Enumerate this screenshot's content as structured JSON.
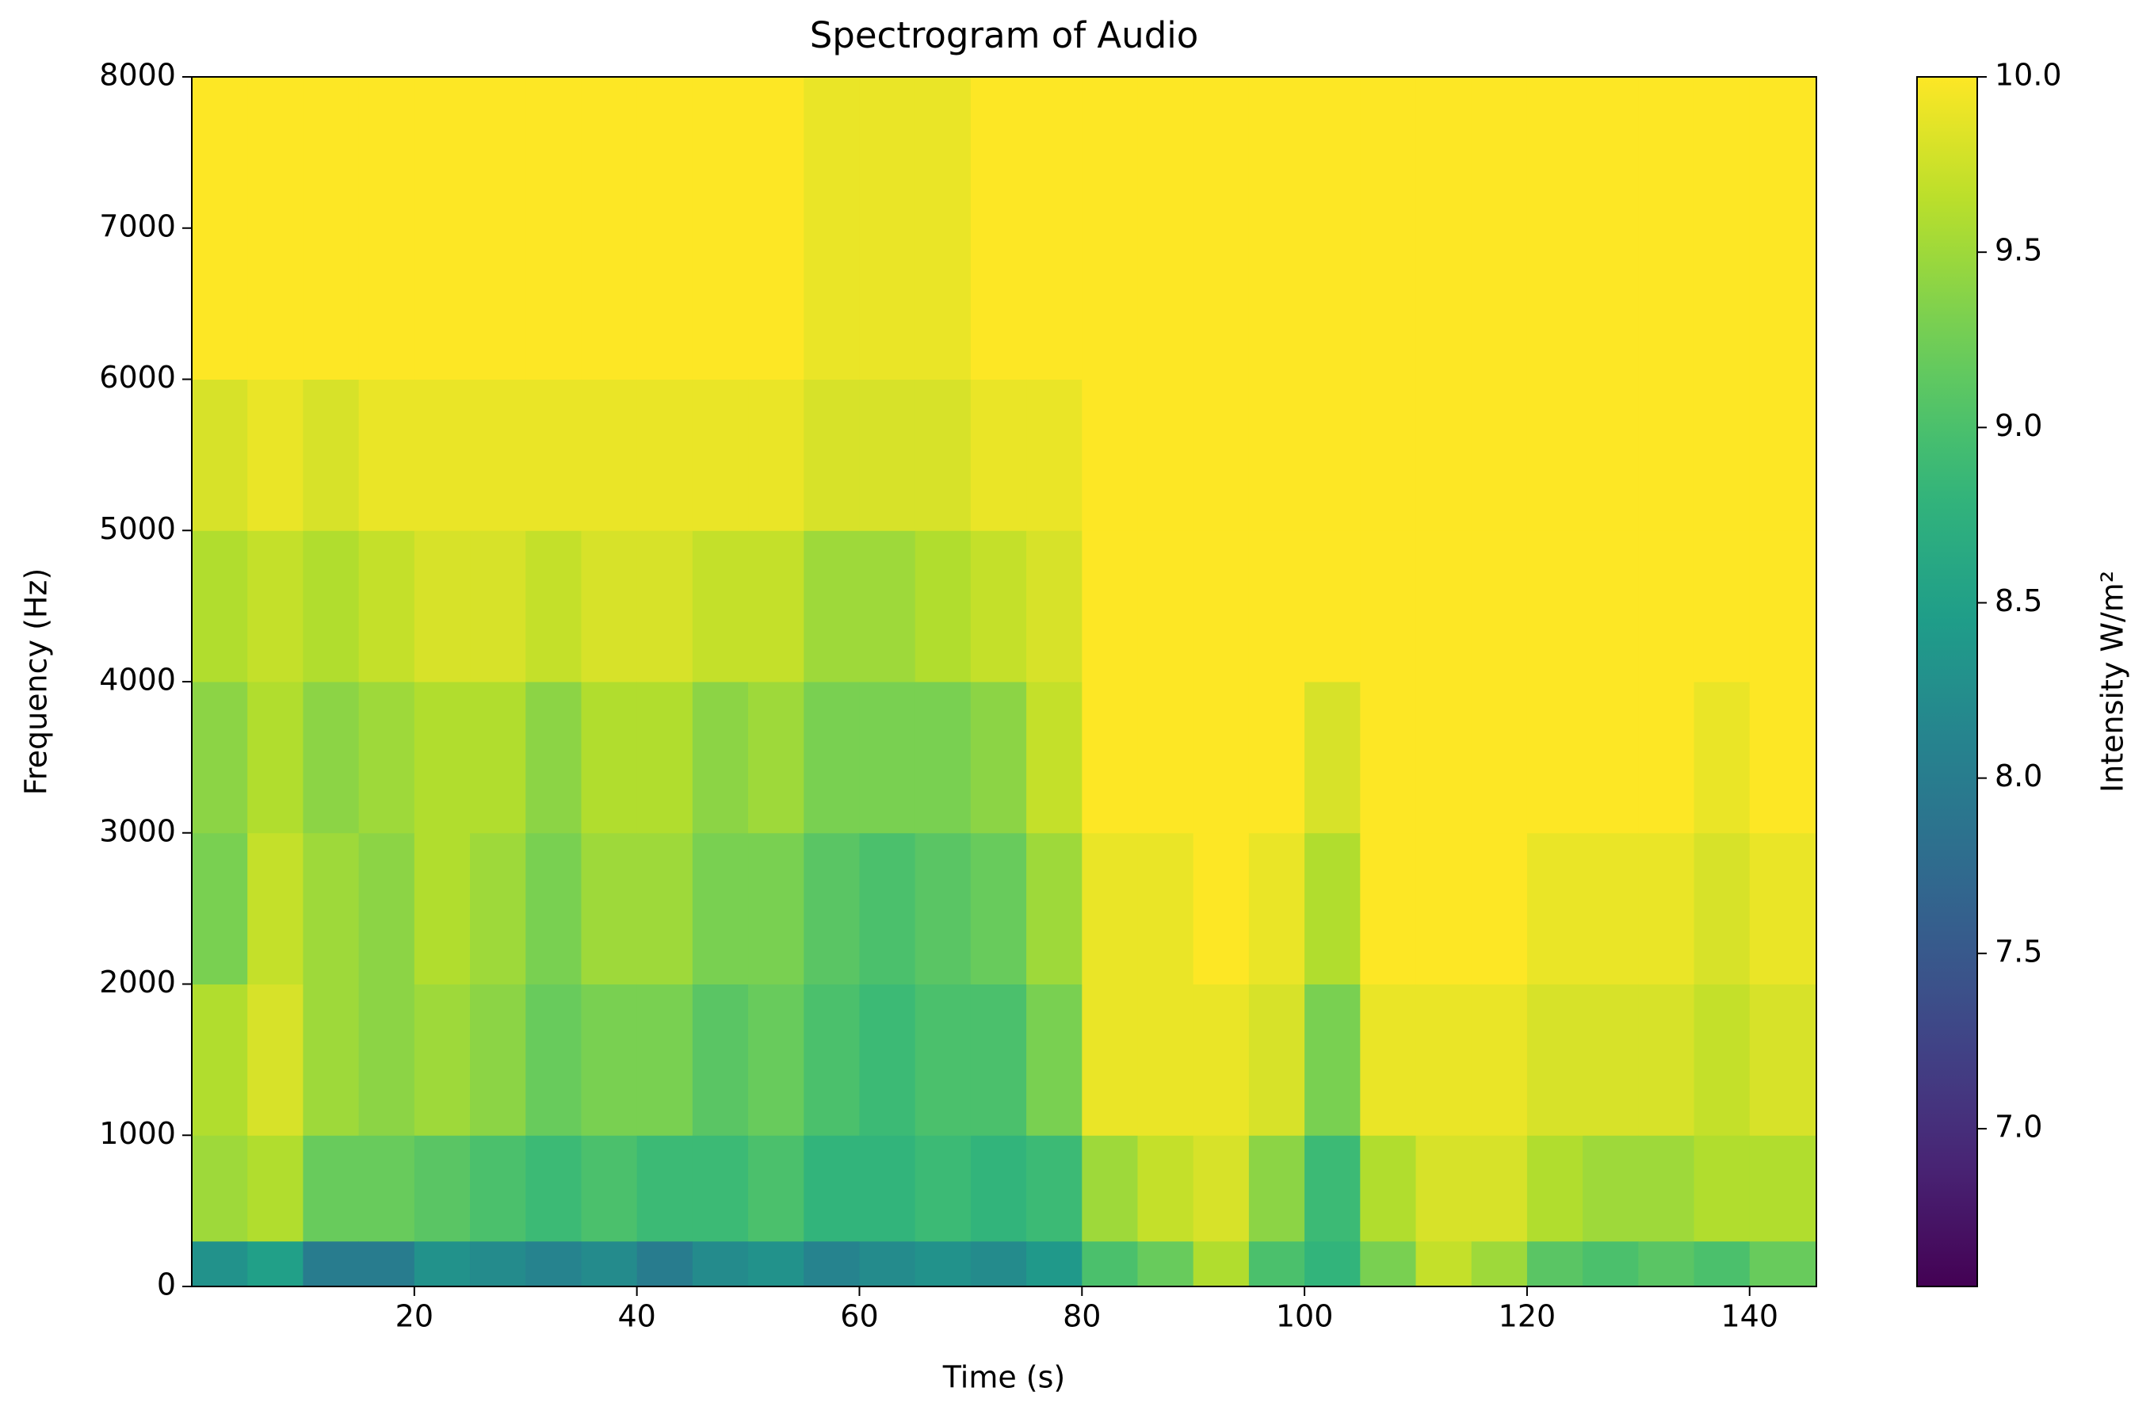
{
  "chart_data": {
    "type": "spectrogram",
    "title": "Spectrogram of Audio",
    "x_label": "Time (s)",
    "y_label": "Frequency (Hz)",
    "colorbar_label": "Intensity W/m²",
    "colormap": "viridis",
    "xlim": [
      0,
      146
    ],
    "ylim": [
      0,
      8000
    ],
    "clim": [
      6.55,
      10
    ],
    "xticks": [
      20,
      40,
      60,
      80,
      100,
      120,
      140
    ],
    "yticks": [
      0,
      1000,
      2000,
      3000,
      4000,
      5000,
      6000,
      7000,
      8000
    ],
    "cticks": [
      {
        "value": 7,
        "label": "7.0"
      },
      {
        "value": 7.5,
        "label": "7.5"
      },
      {
        "value": 8,
        "label": "8.0"
      },
      {
        "value": 8.5,
        "label": "8.5"
      },
      {
        "value": 9,
        "label": "9.0"
      },
      {
        "value": 9.5,
        "label": "9.5"
      },
      {
        "value": 10,
        "label": "10.0"
      }
    ],
    "x_bins": [
      0,
      5,
      10,
      15,
      20,
      25,
      30,
      35,
      40,
      45,
      50,
      55,
      60,
      65,
      70,
      75,
      80,
      85,
      90,
      95,
      100,
      105,
      110,
      115,
      120,
      125,
      130,
      135,
      140,
      146
    ],
    "y_bins": [
      0,
      300,
      1000,
      2000,
      3000,
      4000,
      5000,
      6000,
      8000
    ],
    "values": [
      [
        8.3,
        9.5,
        9.6,
        9.3,
        9.4,
        9.6,
        9.8,
        10
      ],
      [
        8.5,
        9.6,
        9.8,
        9.7,
        9.6,
        9.7,
        9.9,
        10
      ],
      [
        8.0,
        9.2,
        9.5,
        9.5,
        9.4,
        9.6,
        9.8,
        10
      ],
      [
        8.0,
        9.2,
        9.4,
        9.4,
        9.5,
        9.7,
        9.9,
        10
      ],
      [
        8.3,
        9.1,
        9.5,
        9.6,
        9.6,
        9.8,
        9.9,
        10
      ],
      [
        8.2,
        9.0,
        9.4,
        9.5,
        9.6,
        9.8,
        9.9,
        10
      ],
      [
        8.1,
        8.9,
        9.2,
        9.3,
        9.4,
        9.7,
        9.9,
        10
      ],
      [
        8.2,
        9.0,
        9.3,
        9.5,
        9.6,
        9.8,
        9.9,
        10
      ],
      [
        8.0,
        8.9,
        9.3,
        9.5,
        9.6,
        9.8,
        9.9,
        10
      ],
      [
        8.2,
        8.9,
        9.1,
        9.3,
        9.4,
        9.7,
        9.9,
        10
      ],
      [
        8.3,
        9.0,
        9.2,
        9.3,
        9.5,
        9.7,
        9.9,
        10
      ],
      [
        8.1,
        8.8,
        9.0,
        9.1,
        9.3,
        9.5,
        9.8,
        9.9
      ],
      [
        8.2,
        8.8,
        8.9,
        9.0,
        9.3,
        9.5,
        9.8,
        9.9
      ],
      [
        8.3,
        8.9,
        9.0,
        9.1,
        9.3,
        9.6,
        9.8,
        9.9
      ],
      [
        8.2,
        8.8,
        9.0,
        9.2,
        9.4,
        9.7,
        9.9,
        10
      ],
      [
        8.4,
        8.9,
        9.3,
        9.5,
        9.7,
        9.8,
        9.9,
        10
      ],
      [
        9.0,
        9.5,
        9.9,
        9.9,
        10,
        10,
        10,
        10
      ],
      [
        9.2,
        9.7,
        9.9,
        9.9,
        10,
        10,
        10,
        10
      ],
      [
        9.6,
        9.8,
        9.9,
        10,
        10,
        10,
        10,
        10
      ],
      [
        9.0,
        9.4,
        9.8,
        9.9,
        10,
        10,
        10,
        10
      ],
      [
        8.8,
        8.9,
        9.3,
        9.6,
        9.8,
        10,
        10,
        10
      ],
      [
        9.3,
        9.6,
        9.9,
        10,
        10,
        10,
        10,
        10
      ],
      [
        9.7,
        9.8,
        9.9,
        10,
        10,
        10,
        10,
        10
      ],
      [
        9.5,
        9.8,
        9.9,
        10,
        10,
        10,
        10,
        10
      ],
      [
        9.1,
        9.6,
        9.8,
        9.9,
        10,
        10,
        10,
        10
      ],
      [
        9.0,
        9.5,
        9.8,
        9.9,
        10,
        10,
        10,
        10
      ],
      [
        9.1,
        9.5,
        9.8,
        9.9,
        10,
        10,
        10,
        10
      ],
      [
        9.0,
        9.6,
        9.7,
        9.8,
        9.9,
        10,
        10,
        10
      ],
      [
        9.2,
        9.6,
        9.8,
        9.9,
        10,
        10,
        10,
        10
      ]
    ]
  }
}
